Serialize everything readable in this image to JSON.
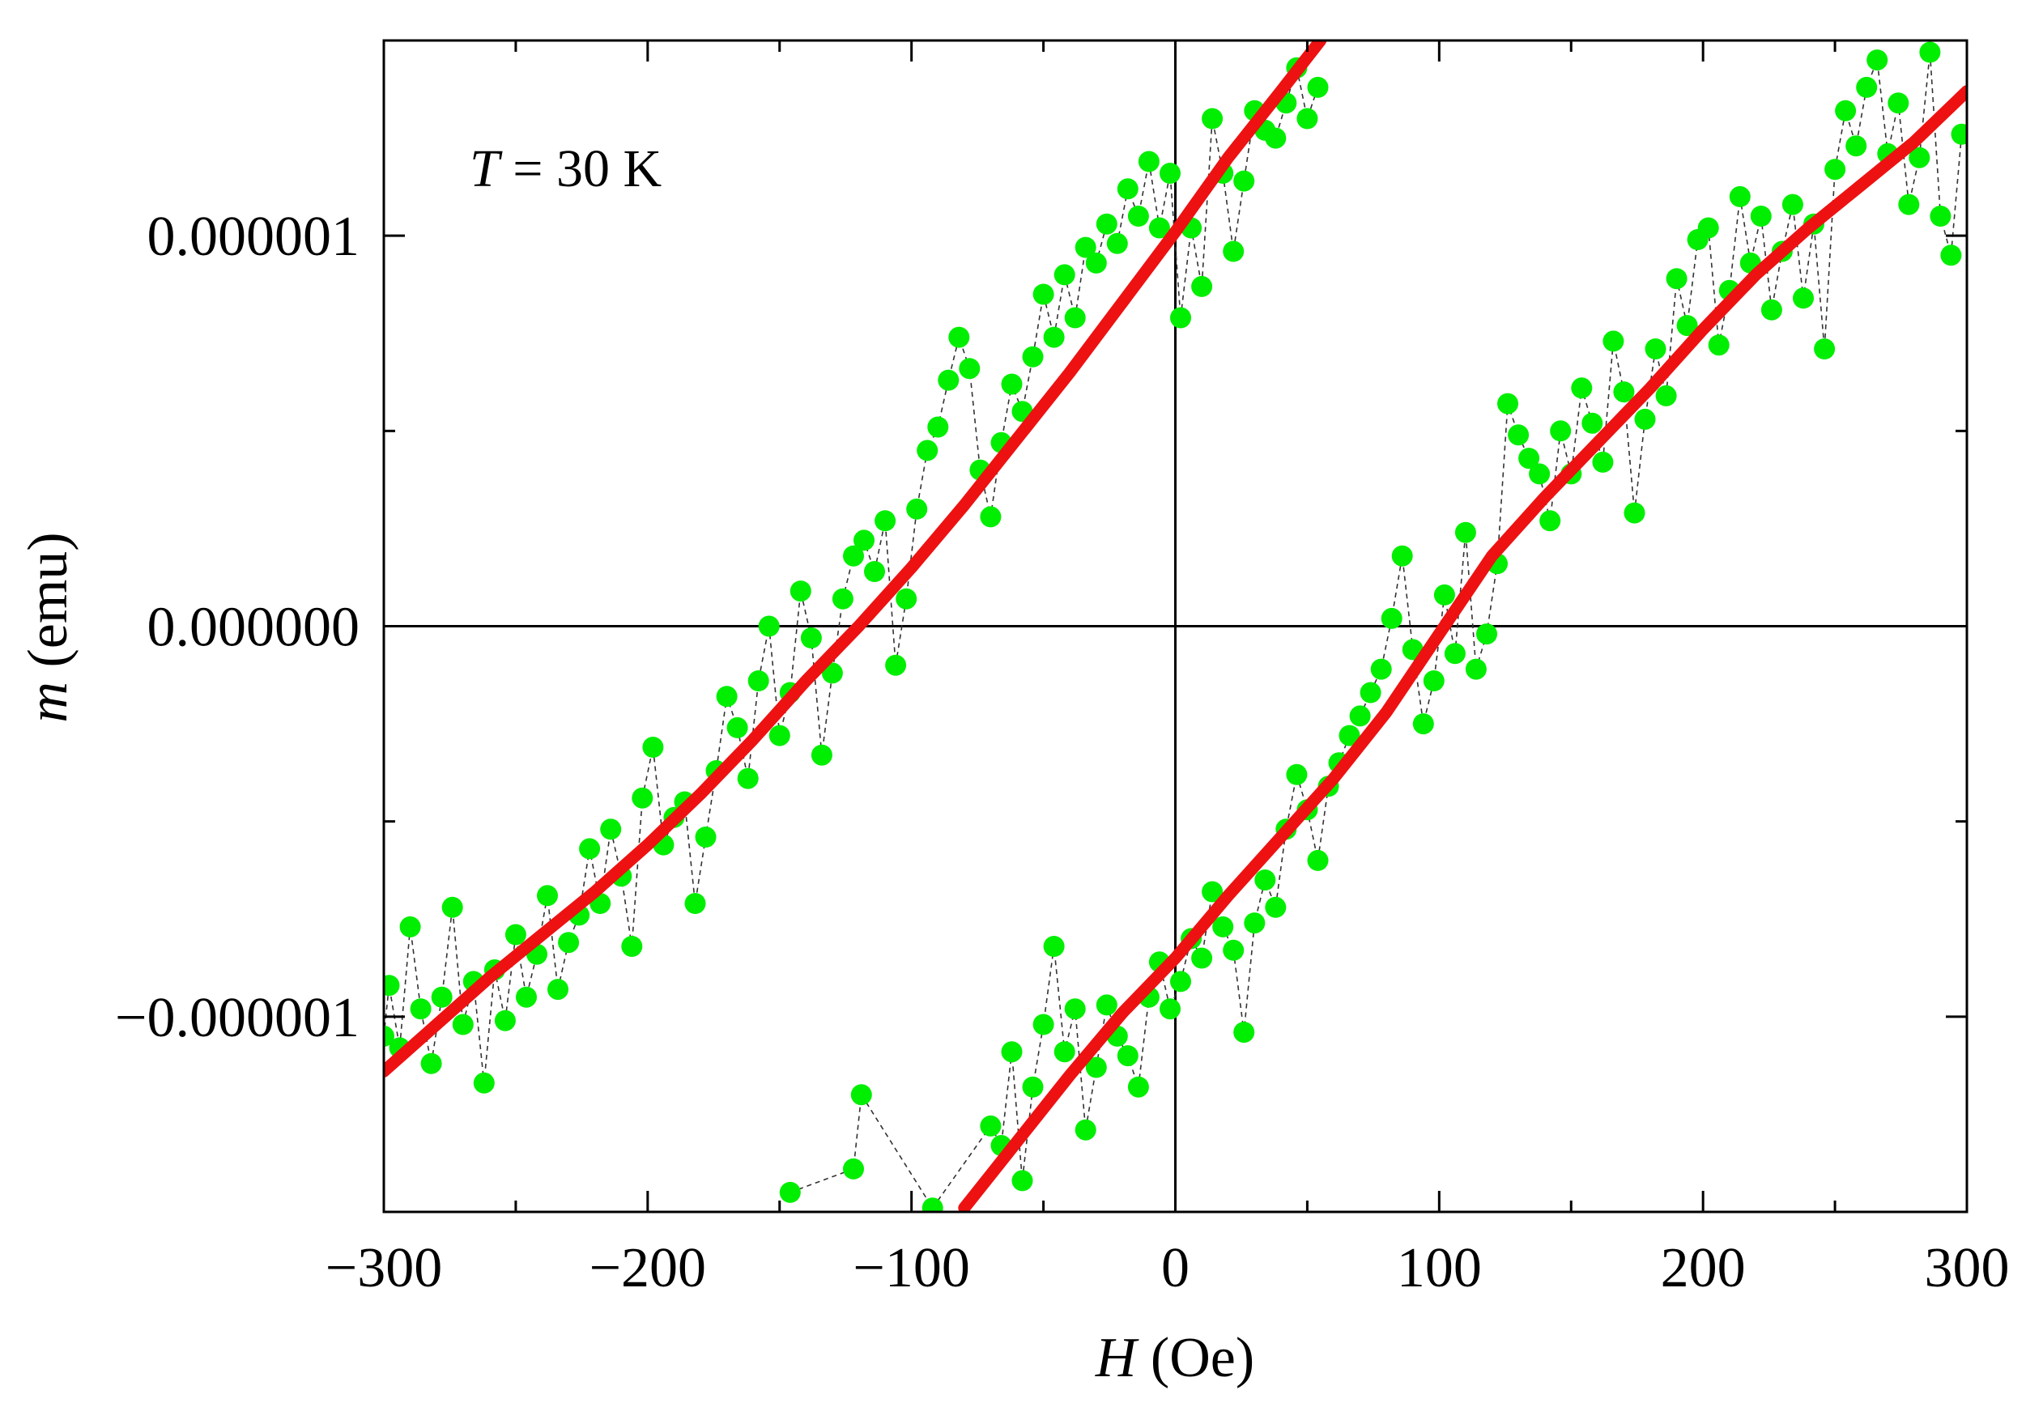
{
  "chart_data": {
    "type": "scatter",
    "annotation": {
      "symbol": "T",
      "rest": " = 30 K"
    },
    "xlabel": {
      "symbol": "H",
      "unit": " (Oe)"
    },
    "ylabel": {
      "symbol": "m",
      "unit": " (emu)"
    },
    "xlim": [
      -300,
      300
    ],
    "ylim": [
      -1.5e-06,
      1.5e-06
    ],
    "grid": false,
    "zero_lines": true,
    "xticks": [
      {
        "value": -300,
        "label": "−300"
      },
      {
        "value": -200,
        "label": "−200"
      },
      {
        "value": -100,
        "label": "−100"
      },
      {
        "value": 0,
        "label": "0"
      },
      {
        "value": 100,
        "label": "100"
      },
      {
        "value": 200,
        "label": "200"
      },
      {
        "value": 300,
        "label": "300"
      }
    ],
    "yticks": [
      {
        "value": 1e-06,
        "label": "0.000001"
      },
      {
        "value": 0,
        "label": "0.000000"
      },
      {
        "value": -1e-06,
        "label": "−0.000001"
      }
    ],
    "series": [
      {
        "kind": "measured",
        "color": "#00ee00",
        "branch": "descending",
        "x": [
          -300,
          -298,
          -294,
          -290,
          -286,
          -282,
          -278,
          -274,
          -270,
          -266,
          -262,
          -258,
          -254,
          -250,
          -246,
          -242,
          -238,
          -234,
          -230,
          -226,
          -222,
          -218,
          -214,
          -210,
          -206,
          -202,
          -198,
          -194,
          -190,
          -186,
          -182,
          -178,
          -174,
          -170,
          -166,
          -162,
          -158,
          -154,
          -150,
          -146,
          -142,
          -138,
          -134,
          -130,
          -126,
          -122,
          -118,
          -114,
          -110,
          -106,
          -102,
          -98,
          -94,
          -90,
          -86,
          -82,
          -78,
          -74,
          -70,
          -66,
          -62,
          -58,
          -54,
          -50,
          -46,
          -42,
          -38,
          -34,
          -30,
          -26,
          -22,
          -18,
          -14,
          -10,
          -6,
          -2,
          2,
          6,
          10,
          14,
          18,
          22,
          26,
          30,
          34,
          38,
          42,
          46,
          50,
          54
        ],
        "y": [
          -1.05e-06,
          -9.2e-07,
          -1.08e-06,
          -7.7e-07,
          -9.8e-07,
          -1.12e-06,
          -9.5e-07,
          -7.2e-07,
          -1.02e-06,
          -9.1e-07,
          -1.17e-06,
          -8.8e-07,
          -1.01e-06,
          -7.9e-07,
          -9.5e-07,
          -8.4e-07,
          -6.9e-07,
          -9.3e-07,
          -8.1e-07,
          -7.4e-07,
          -5.7e-07,
          -7.1e-07,
          -5.2e-07,
          -6.4e-07,
          -8.2e-07,
          -4.4e-07,
          -3.1e-07,
          -5.6e-07,
          -4.9e-07,
          -4.5e-07,
          -7.1e-07,
          -5.4e-07,
          -3.7e-07,
          -1.8e-07,
          -2.6e-07,
          -3.9e-07,
          -1.4e-07,
          0.0,
          -2.8e-07,
          -1.7e-07,
          9e-08,
          -3e-08,
          -3.3e-07,
          -1.2e-07,
          7e-08,
          1.8e-07,
          2.2e-07,
          1.4e-07,
          2.7e-07,
          -1e-07,
          7e-08,
          3e-07,
          4.5e-07,
          5.1e-07,
          6.3e-07,
          7.4e-07,
          6.6e-07,
          4e-07,
          2.8e-07,
          4.7e-07,
          6.2e-07,
          5.5e-07,
          6.9e-07,
          8.5e-07,
          7.4e-07,
          9e-07,
          7.9e-07,
          9.7e-07,
          9.3e-07,
          1.03e-06,
          9.8e-07,
          1.12e-06,
          1.05e-06,
          1.19e-06,
          1.02e-06,
          1.16e-06,
          7.9e-07,
          1.02e-06,
          8.7e-07,
          1.3e-06,
          1.16e-06,
          9.6e-07,
          1.14e-06,
          1.32e-06,
          1.27e-06,
          1.25e-06,
          1.34e-06,
          1.43e-06,
          1.3e-06,
          1.38e-06
        ]
      },
      {
        "kind": "measured",
        "color": "#00ee00",
        "branch": "ascending",
        "x": [
          -146,
          -122,
          -119,
          -92,
          -70,
          -66,
          -62,
          -58,
          -54,
          -50,
          -46,
          -42,
          -38,
          -34,
          -30,
          -26,
          -22,
          -18,
          -14,
          -10,
          -6,
          -2,
          2,
          6,
          10,
          14,
          18,
          22,
          26,
          30,
          34,
          38,
          42,
          46,
          50,
          54,
          58,
          62,
          66,
          70,
          74,
          78,
          82,
          86,
          90,
          94,
          98,
          102,
          106,
          110,
          114,
          118,
          122,
          126,
          130,
          134,
          138,
          142,
          146,
          150,
          154,
          158,
          162,
          166,
          170,
          174,
          178,
          182,
          186,
          190,
          194,
          198,
          202,
          206,
          210,
          214,
          218,
          222,
          226,
          230,
          234,
          238,
          242,
          246,
          250,
          254,
          258,
          262,
          266,
          270,
          274,
          278,
          282,
          286,
          290,
          294,
          298
        ],
        "y": [
          -1.45e-06,
          -1.39e-06,
          -1.2e-06,
          -1.49e-06,
          -1.28e-06,
          -1.33e-06,
          -1.09e-06,
          -1.42e-06,
          -1.18e-06,
          -1.02e-06,
          -8.2e-07,
          -1.09e-06,
          -9.8e-07,
          -1.29e-06,
          -1.13e-06,
          -9.7e-07,
          -1.05e-06,
          -1.1e-06,
          -1.18e-06,
          -9.5e-07,
          -8.6e-07,
          -9.8e-07,
          -9.1e-07,
          -8e-07,
          -8.5e-07,
          -6.8e-07,
          -7.7e-07,
          -8.3e-07,
          -1.04e-06,
          -7.6e-07,
          -6.5e-07,
          -7.2e-07,
          -5.2e-07,
          -3.8e-07,
          -4.7e-07,
          -6e-07,
          -4.1e-07,
          -3.5e-07,
          -2.8e-07,
          -2.3e-07,
          -1.7e-07,
          -1.1e-07,
          2e-08,
          1.8e-07,
          -6e-08,
          -2.5e-07,
          -1.4e-07,
          8e-08,
          -7e-08,
          2.4e-07,
          -1.1e-07,
          -2e-08,
          1.6e-07,
          5.7e-07,
          4.9e-07,
          4.3e-07,
          3.9e-07,
          2.7e-07,
          5e-07,
          3.9e-07,
          6.1e-07,
          5.2e-07,
          4.2e-07,
          7.3e-07,
          6e-07,
          2.9e-07,
          5.3e-07,
          7.1e-07,
          5.9e-07,
          8.9e-07,
          7.7e-07,
          9.9e-07,
          1.02e-06,
          7.2e-07,
          8.6e-07,
          1.1e-06,
          9.3e-07,
          1.05e-06,
          8.1e-07,
          9.6e-07,
          1.08e-06,
          8.4e-07,
          1.03e-06,
          7.1e-07,
          1.17e-06,
          1.32e-06,
          1.23e-06,
          1.38e-06,
          1.45e-06,
          1.21e-06,
          1.34e-06,
          1.08e-06,
          1.2e-06,
          1.47e-06,
          1.05e-06,
          9.5e-07,
          1.26e-06
        ]
      },
      {
        "kind": "fit",
        "color": "#ee1111",
        "branch": "descending",
        "x": [
          -300,
          -280,
          -260,
          -240,
          -220,
          -200,
          -180,
          -160,
          -140,
          -120,
          -100,
          -80,
          -60,
          -40,
          -20,
          0,
          20,
          40,
          55
        ],
        "y": [
          -1.14e-06,
          -1.02e-06,
          -9e-07,
          -7.9e-07,
          -6.8e-07,
          -5.6e-07,
          -4.3e-07,
          -2.9e-07,
          -1.4e-07,
          0.0,
          1.5e-07,
          3.1e-07,
          4.8e-07,
          6.5e-07,
          8.3e-07,
          1.01e-06,
          1.2e-06,
          1.37e-06,
          1.5e-06
        ]
      },
      {
        "kind": "fit",
        "color": "#ee1111",
        "branch": "ascending",
        "x": [
          -80,
          -60,
          -40,
          -20,
          0,
          20,
          40,
          60,
          80,
          100,
          120,
          140,
          160,
          180,
          200,
          220,
          240,
          260,
          280,
          300
        ],
        "y": [
          -1.49e-06,
          -1.32e-06,
          -1.15e-06,
          -9.9e-07,
          -8.5e-07,
          -6.9e-07,
          -5.4e-07,
          -3.9e-07,
          -2.2e-07,
          -2e-08,
          1.8e-07,
          3.3e-07,
          4.7e-07,
          6.1e-07,
          7.6e-07,
          9e-07,
          1.02e-06,
          1.13e-06,
          1.24e-06,
          1.37e-06
        ]
      }
    ]
  }
}
